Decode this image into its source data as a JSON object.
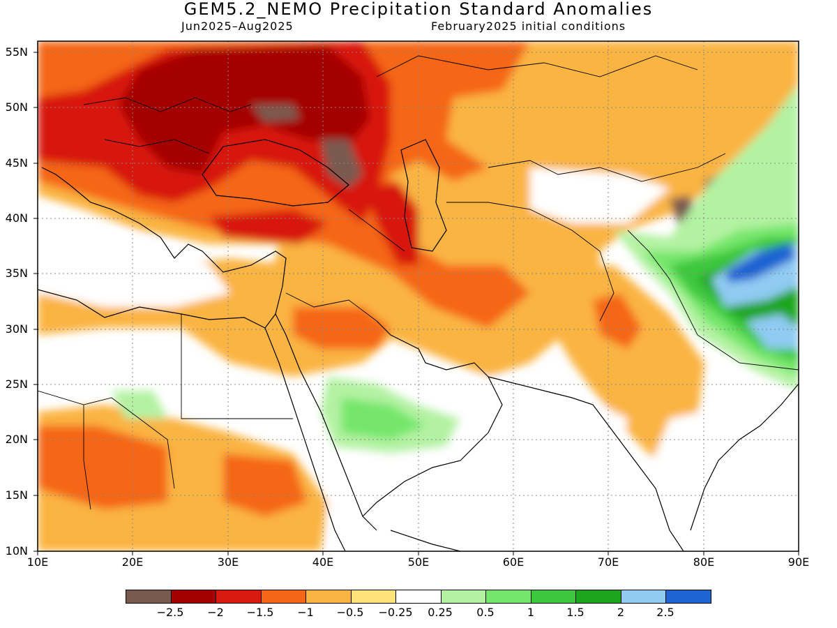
{
  "header": {
    "title": "GEM5.2_NEMO Precipitation Standard Anomalies",
    "period": "Jun2025–Aug2025",
    "init": "February2025 initial conditions"
  },
  "map": {
    "lon_range": [
      10,
      90
    ],
    "lat_range": [
      10,
      56
    ],
    "lat_ticks": [
      "10N",
      "15N",
      "20N",
      "25N",
      "30N",
      "35N",
      "40N",
      "45N",
      "50N",
      "55N"
    ],
    "lon_ticks": [
      "10E",
      "20E",
      "30E",
      "40E",
      "50E",
      "60E",
      "70E",
      "80E",
      "90E"
    ],
    "grid": "dotted",
    "regions": [
      {
        "name": "eastern-europe-dry-core",
        "anom": -2.5
      },
      {
        "name": "caucasus-dry-core",
        "anom": -2.5
      },
      {
        "name": "himalaya-dry-spots",
        "anom": -2.5
      },
      {
        "name": "tibet-wet-max",
        "anom": 2.5
      },
      {
        "name": "arabia-wet",
        "anom": 0.5
      }
    ]
  },
  "colorbar": {
    "colors": [
      "#7a5a4f",
      "#a50000",
      "#d7190f",
      "#f56619",
      "#fab442",
      "#fde37a",
      "#ffffff",
      "#b3f2a2",
      "#74e66a",
      "#3cc83c",
      "#1ea51e",
      "#8fcbf2",
      "#1e64d2"
    ],
    "labels": [
      "−2.5",
      "−2",
      "−1.5",
      "−1",
      "−0.5",
      "−0.25",
      "0.25",
      "0.5",
      "1",
      "1.5",
      "2",
      "2.5"
    ]
  }
}
